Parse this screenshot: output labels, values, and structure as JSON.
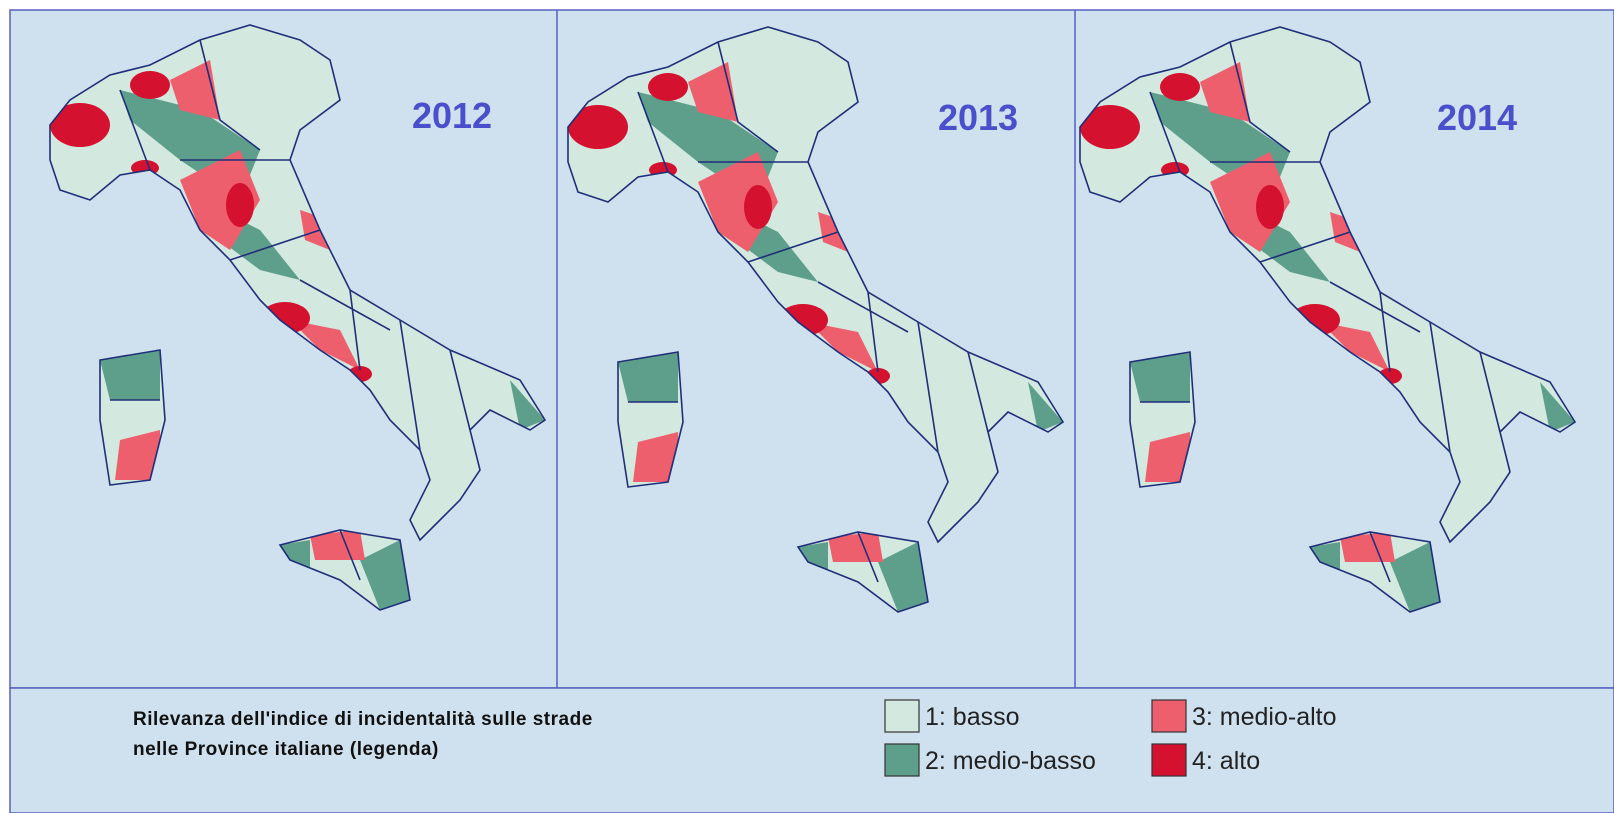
{
  "panels": [
    {
      "year": "2012"
    },
    {
      "year": "2013"
    },
    {
      "year": "2014"
    }
  ],
  "legend": {
    "title": [
      "Rilevanza dell'indice di incidentalità sulle strade",
      "nelle Province italiane (legenda)"
    ],
    "items": [
      {
        "label": "1: basso",
        "color": "#d3e8df"
      },
      {
        "label": "2: medio-basso",
        "color": "#5e9f8b"
      },
      {
        "label": "3: medio-alto",
        "color": "#ee5f6e"
      },
      {
        "label": "4: alto",
        "color": "#d4112f"
      }
    ]
  }
}
